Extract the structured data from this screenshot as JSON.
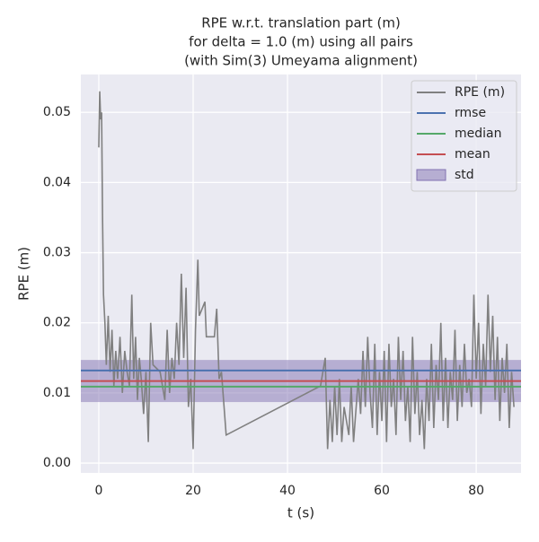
{
  "chart_data": {
    "type": "line",
    "title": [
      "RPE w.r.t. translation part (m)",
      "for delta = 1.0 (m) using all pairs",
      "(with Sim(3) Umeyama alignment)"
    ],
    "x_label": "t (s)",
    "y_label": "RPE (m)",
    "xlim": [
      -3.8,
      89.5
    ],
    "ylim": [
      -0.0014,
      0.0554
    ],
    "xticks": [
      0,
      20,
      40,
      60,
      80
    ],
    "yticks": [
      {
        "value": 0,
        "label": "0.00"
      },
      0.01,
      0.02,
      0.03,
      0.04,
      0.05
    ],
    "grid": true,
    "legend": "upper right",
    "x": [
      0.0,
      0.2,
      0.4,
      0.6,
      0.8,
      1.0,
      1.3,
      1.6,
      2.0,
      2.4,
      2.8,
      3.2,
      3.6,
      4.0,
      4.5,
      5.0,
      5.5,
      6.0,
      6.5,
      7.0,
      7.4,
      7.8,
      8.2,
      8.6,
      9.0,
      9.5,
      10.0,
      10.5,
      11.0,
      11.5,
      13.0,
      14.0,
      14.5,
      15.0,
      15.5,
      16.0,
      16.5,
      17.0,
      17.5,
      18.0,
      18.5,
      19.0,
      19.5,
      20.0,
      20.5,
      21.0,
      21.3,
      22.5,
      22.8,
      24.5,
      25.0,
      25.5,
      26.0,
      27.0,
      47.0,
      48.0,
      48.5,
      49.0,
      49.5,
      50.0,
      50.5,
      51.0,
      51.5,
      52.0,
      53.0,
      53.5,
      54.0,
      55.0,
      55.5,
      56.0,
      56.5,
      57.0,
      57.5,
      58.0,
      58.5,
      59.0,
      59.5,
      60.0,
      60.5,
      61.0,
      61.5,
      62.0,
      62.5,
      63.0,
      63.5,
      64.0,
      64.5,
      65.0,
      65.5,
      66.0,
      66.5,
      67.0,
      67.5,
      68.0,
      68.5,
      69.0,
      69.5,
      70.0,
      70.5,
      71.0,
      71.5,
      72.0,
      72.5,
      73.0,
      73.5,
      74.0,
      74.5,
      75.0,
      75.5,
      76.0,
      76.5,
      77.0,
      77.5,
      78.0,
      78.5,
      79.0,
      79.5,
      80.0,
      80.5,
      81.0,
      81.5,
      82.0,
      82.5,
      83.0,
      83.5,
      84.0,
      84.5,
      85.0,
      85.5,
      86.0,
      86.5,
      87.0,
      87.5,
      88.0
    ],
    "series": [
      {
        "name": "RPE (m)",
        "color": "#808080",
        "values": [
          0.045,
          0.053,
          0.049,
          0.05,
          0.035,
          0.024,
          0.02,
          0.014,
          0.021,
          0.013,
          0.019,
          0.011,
          0.016,
          0.012,
          0.018,
          0.01,
          0.016,
          0.013,
          0.011,
          0.024,
          0.012,
          0.018,
          0.009,
          0.015,
          0.012,
          0.007,
          0.013,
          0.003,
          0.02,
          0.014,
          0.013,
          0.009,
          0.019,
          0.01,
          0.015,
          0.012,
          0.02,
          0.014,
          0.027,
          0.015,
          0.025,
          0.008,
          0.012,
          0.002,
          0.019,
          0.029,
          0.021,
          0.023,
          0.018,
          0.018,
          0.022,
          0.012,
          0.013,
          0.004,
          0.011,
          0.015,
          0.002,
          0.009,
          0.003,
          0.011,
          0.004,
          0.012,
          0.003,
          0.008,
          0.004,
          0.011,
          0.003,
          0.012,
          0.007,
          0.016,
          0.008,
          0.018,
          0.01,
          0.005,
          0.017,
          0.004,
          0.013,
          0.006,
          0.016,
          0.003,
          0.017,
          0.008,
          0.012,
          0.004,
          0.018,
          0.009,
          0.016,
          0.006,
          0.011,
          0.003,
          0.018,
          0.007,
          0.013,
          0.004,
          0.009,
          0.002,
          0.012,
          0.006,
          0.017,
          0.005,
          0.014,
          0.009,
          0.02,
          0.006,
          0.015,
          0.005,
          0.013,
          0.009,
          0.019,
          0.006,
          0.014,
          0.008,
          0.017,
          0.01,
          0.012,
          0.008,
          0.024,
          0.012,
          0.02,
          0.007,
          0.017,
          0.011,
          0.024,
          0.013,
          0.021,
          0.009,
          0.018,
          0.006,
          0.015,
          0.01,
          0.017,
          0.005,
          0.013,
          0.008
        ]
      }
    ],
    "stats": [
      {
        "name": "rmse",
        "color": "#4c72b0",
        "value": 0.0132
      },
      {
        "name": "median",
        "color": "#55a868",
        "value": 0.0109
      },
      {
        "name": "mean",
        "color": "#c44e52",
        "value": 0.0117
      },
      {
        "name": "std",
        "color": "#8172b2",
        "value": 0.003
      }
    ]
  }
}
